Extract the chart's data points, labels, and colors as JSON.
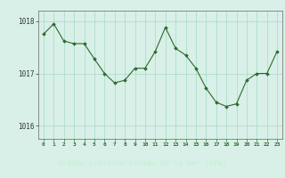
{
  "x": [
    0,
    1,
    2,
    3,
    4,
    5,
    6,
    7,
    8,
    9,
    10,
    11,
    12,
    13,
    14,
    15,
    16,
    17,
    18,
    19,
    20,
    21,
    22,
    23
  ],
  "y": [
    1017.75,
    1017.95,
    1017.62,
    1017.57,
    1017.57,
    1017.28,
    1017.0,
    1016.82,
    1016.87,
    1017.1,
    1017.1,
    1017.42,
    1017.88,
    1017.48,
    1017.35,
    1017.1,
    1016.72,
    1016.45,
    1016.37,
    1016.42,
    1016.87,
    1017.0,
    1017.0,
    1017.42
  ],
  "line_color": "#2d6a2d",
  "marker_color": "#2d6a2d",
  "bg_color": "#d8f0e8",
  "grid_color": "#a8d8c8",
  "bottom_bar_color": "#2d6a2d",
  "bottom_bar_bg": "#2d6a2d",
  "title": "Graphe pression niveau de la mer (hPa)",
  "title_color": "#c8f0d8",
  "tick_color": "#2d6a2d",
  "ylim": [
    1015.75,
    1018.2
  ],
  "yticks": [
    1016,
    1017,
    1018
  ],
  "xticks": [
    0,
    1,
    2,
    3,
    4,
    5,
    6,
    7,
    8,
    9,
    10,
    11,
    12,
    13,
    14,
    15,
    16,
    17,
    18,
    19,
    20,
    21,
    22,
    23
  ],
  "figsize": [
    3.2,
    2.0
  ],
  "dpi": 100
}
